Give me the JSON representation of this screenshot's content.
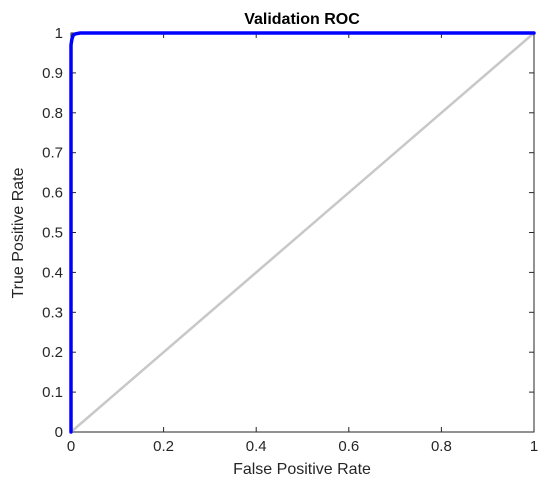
{
  "chart_data": {
    "type": "line",
    "title": "Validation ROC",
    "xlabel": "False Positive Rate",
    "ylabel": "True Positive Rate",
    "xlim": [
      0,
      1
    ],
    "ylim": [
      0,
      1
    ],
    "xticks": [
      0,
      0.2,
      0.4,
      0.6,
      0.8,
      1
    ],
    "xtick_labels": [
      "0",
      "0.2",
      "0.4",
      "0.6",
      "0.8",
      "1"
    ],
    "yticks": [
      0,
      0.1,
      0.2,
      0.3,
      0.4,
      0.5,
      0.6,
      0.7,
      0.8,
      0.9,
      1
    ],
    "ytick_labels": [
      "0",
      "0.1",
      "0.2",
      "0.3",
      "0.4",
      "0.5",
      "0.6",
      "0.7",
      "0.8",
      "0.9",
      "1"
    ],
    "grid": false,
    "series": [
      {
        "color": "#0000ff",
        "x": [
          0,
          0,
          0.002,
          0.005,
          0.01,
          0.02,
          0.03,
          1
        ],
        "y": [
          0,
          0.97,
          0.985,
          0.995,
          0.998,
          1,
          1,
          1
        ]
      },
      {
        "color": "#c8c8c8",
        "x": [
          0,
          1
        ],
        "y": [
          0,
          1
        ]
      }
    ]
  }
}
